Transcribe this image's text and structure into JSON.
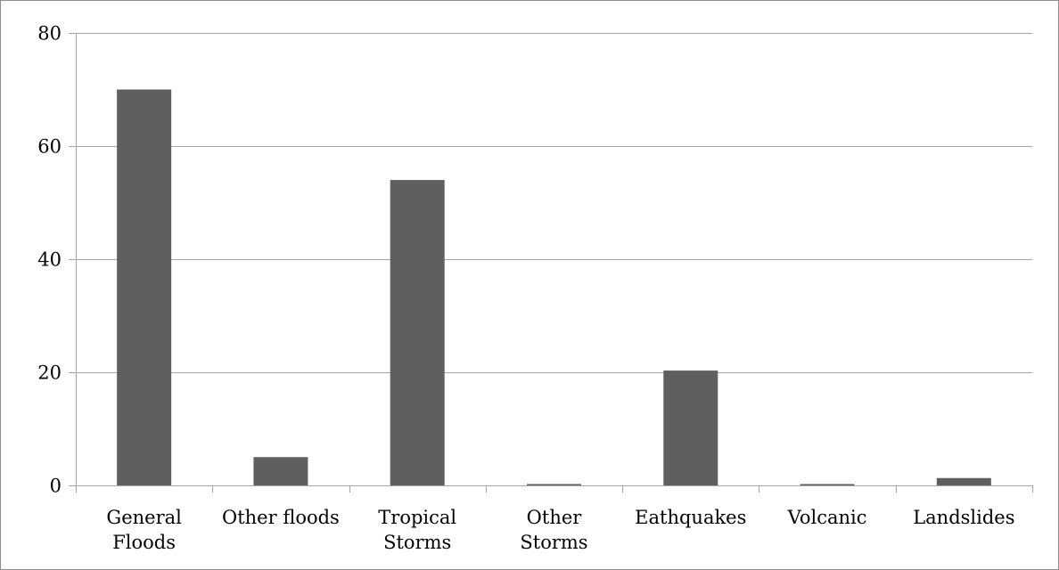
{
  "chart_data": {
    "type": "bar",
    "title": "",
    "xlabel": "",
    "ylabel": "",
    "categories": [
      [
        "General",
        "Floods"
      ],
      [
        "Other floods"
      ],
      [
        "Tropical",
        "Storms"
      ],
      [
        "Other",
        "Storms"
      ],
      [
        "Eathquakes"
      ],
      [
        "Volcanic"
      ],
      [
        "Landslides"
      ]
    ],
    "values": [
      70,
      5,
      54,
      0.2,
      20.3,
      0.2,
      1.3
    ],
    "ylim": [
      0,
      80
    ],
    "yticks": [
      0,
      20,
      40,
      60,
      80
    ],
    "grid": true,
    "legend": "none",
    "colors": {
      "bar": "#5f5f5f",
      "grid": "#a6a6a6",
      "axis": "#a6a6a6",
      "frame": "#8c8c8c"
    }
  }
}
